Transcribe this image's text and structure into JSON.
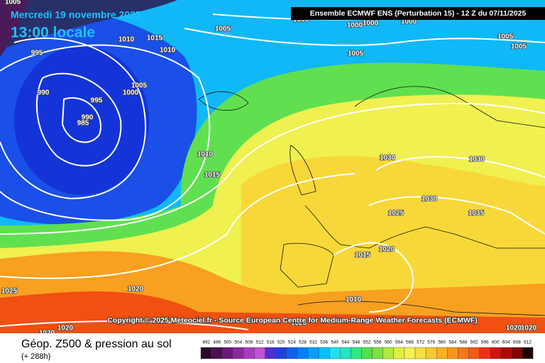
{
  "header": {
    "date": "Mercredi 19 novembre 2025",
    "time": "13:00 locale",
    "model": "Ensemble ECMWF ENS  (Perturbation 15)  -  12 Z du 07/11/2025",
    "copyright": "Copyright © 2025 Meteociel.fr - Source European Centre for Medium-Range Weather Forecasts (ECMWF)"
  },
  "footer": {
    "title": "Géop. Z500 & pression au sol",
    "lead": "(+ 288h)"
  },
  "isobar_labels": [
    "1005",
    "995",
    "990",
    "995",
    "990",
    "985",
    "1010",
    "1015",
    "1010",
    "1005",
    "1000",
    "1005",
    "1000",
    "1000",
    "1000",
    "1000",
    "1005",
    "1005",
    "1005",
    "1010",
    "1015",
    "1030",
    "1030",
    "1030",
    "1025",
    "1035",
    "1015",
    "1020",
    "1010",
    "1025",
    "1020",
    "1020",
    "1020",
    "1020",
    "1020",
    "1020"
  ],
  "legend": {
    "ticks": [
      492,
      496,
      500,
      504,
      508,
      512,
      516,
      520,
      524,
      528,
      532,
      536,
      540,
      544,
      548,
      552,
      556,
      560,
      564,
      568,
      572,
      576,
      580,
      584,
      588,
      592,
      596,
      600,
      604,
      608,
      612
    ],
    "colors": [
      "#2b0a2e",
      "#4b1051",
      "#6b1a78",
      "#8b2a9c",
      "#a83cc0",
      "#c050d8",
      "#4e30d0",
      "#2040e0",
      "#1060f0",
      "#0080ff",
      "#00a0ff",
      "#00c0ff",
      "#20e0f0",
      "#20e8c0",
      "#30e880",
      "#50e050",
      "#80e040",
      "#b0e840",
      "#e0f040",
      "#f8f050",
      "#f8e040",
      "#f8c830",
      "#f8b020",
      "#f89818",
      "#f87818",
      "#f85818",
      "#f03018",
      "#d81010",
      "#b00808",
      "#800404",
      "#200000"
    ]
  }
}
